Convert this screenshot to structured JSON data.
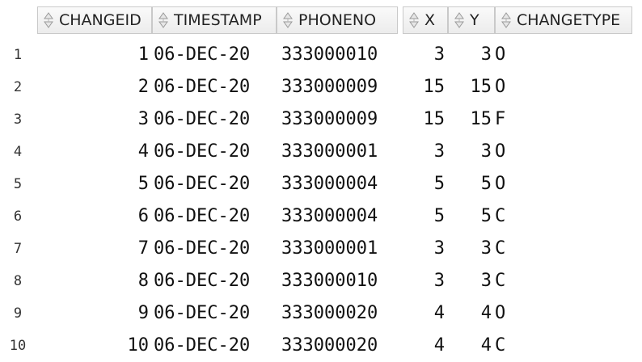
{
  "columns": [
    {
      "key": "changeid",
      "label": "CHANGEID"
    },
    {
      "key": "timestamp",
      "label": "TIMESTAMP"
    },
    {
      "key": "phoneno",
      "label": "PHONENO"
    },
    {
      "key": "x",
      "label": "X"
    },
    {
      "key": "y",
      "label": "Y"
    },
    {
      "key": "changetype",
      "label": "CHANGETYPE"
    }
  ],
  "rows": [
    {
      "rownum": "1",
      "changeid": "1",
      "timestamp": "06-DEC-20",
      "phoneno": "333000010",
      "x": "3",
      "y": "3",
      "changetype": "O"
    },
    {
      "rownum": "2",
      "changeid": "2",
      "timestamp": "06-DEC-20",
      "phoneno": "333000009",
      "x": "15",
      "y": "15",
      "changetype": "O"
    },
    {
      "rownum": "3",
      "changeid": "3",
      "timestamp": "06-DEC-20",
      "phoneno": "333000009",
      "x": "15",
      "y": "15",
      "changetype": "F"
    },
    {
      "rownum": "4",
      "changeid": "4",
      "timestamp": "06-DEC-20",
      "phoneno": "333000001",
      "x": "3",
      "y": "3",
      "changetype": "O"
    },
    {
      "rownum": "5",
      "changeid": "5",
      "timestamp": "06-DEC-20",
      "phoneno": "333000004",
      "x": "5",
      "y": "5",
      "changetype": "O"
    },
    {
      "rownum": "6",
      "changeid": "6",
      "timestamp": "06-DEC-20",
      "phoneno": "333000004",
      "x": "5",
      "y": "5",
      "changetype": "C"
    },
    {
      "rownum": "7",
      "changeid": "7",
      "timestamp": "06-DEC-20",
      "phoneno": "333000001",
      "x": "3",
      "y": "3",
      "changetype": "C"
    },
    {
      "rownum": "8",
      "changeid": "8",
      "timestamp": "06-DEC-20",
      "phoneno": "333000010",
      "x": "3",
      "y": "3",
      "changetype": "C"
    },
    {
      "rownum": "9",
      "changeid": "9",
      "timestamp": "06-DEC-20",
      "phoneno": "333000020",
      "x": "4",
      "y": "4",
      "changetype": "O"
    },
    {
      "rownum": "10",
      "changeid": "10",
      "timestamp": "06-DEC-20",
      "phoneno": "333000020",
      "x": "4",
      "y": "4",
      "changetype": "C"
    }
  ],
  "icons": {
    "sort": "sort-arrows-icon"
  }
}
